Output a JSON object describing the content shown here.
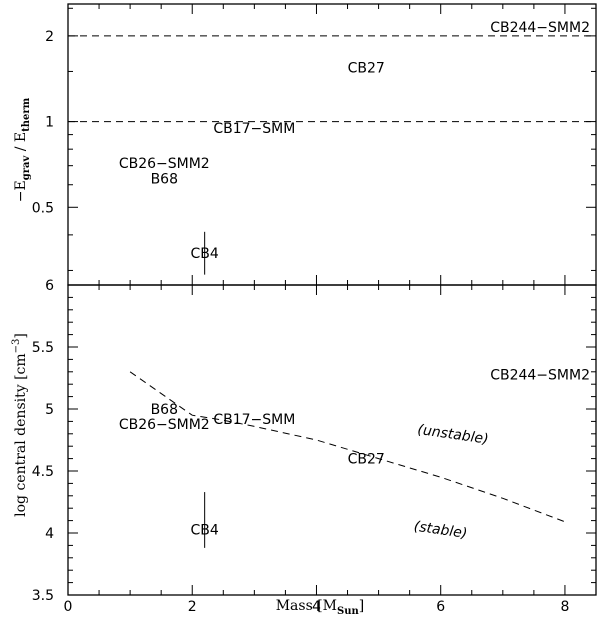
{
  "chart_data": [
    {
      "type": "scatter",
      "panel": "top",
      "xlim": [
        0,
        8.5
      ],
      "ylim_log10": [
        -0.574,
        0.413
      ],
      "y_scale": "log",
      "ylabel": {
        "prefix": "−E",
        "sub1": "grav",
        "mid": " / E",
        "sub2": "therm"
      },
      "yticks": [
        {
          "value": 0.5,
          "label": "0.5"
        },
        {
          "value": 1,
          "label": "1"
        },
        {
          "value": 2,
          "label": "2"
        }
      ],
      "hlines": [
        {
          "y": 2,
          "style": "dashed"
        },
        {
          "y": 1,
          "style": "dashed"
        }
      ],
      "points": [
        {
          "name": "CB244−SMM2",
          "x": 7.6,
          "y": 2.15
        },
        {
          "name": "CB27",
          "x": 4.8,
          "y": 1.55
        },
        {
          "name": "CB17−SMM",
          "x": 3.0,
          "y": 0.95
        },
        {
          "name": "CB26−SMM2",
          "x": 1.55,
          "y": 0.715
        },
        {
          "name": "B68",
          "x": 1.55,
          "y": 0.63
        },
        {
          "name": "CB4",
          "x": 2.2,
          "y": 0.345,
          "yerr": [
            0.29,
            0.41
          ]
        }
      ]
    },
    {
      "type": "scatter",
      "panel": "bottom",
      "xlim": [
        0,
        8.5
      ],
      "ylim": [
        3.5,
        6
      ],
      "xlabel": {
        "prefix": "Mass [M",
        "sub": "Sun",
        "suffix": "]"
      },
      "ylabel": {
        "prefix": "log central density [cm",
        "sup": "−3",
        "suffix": "]"
      },
      "xticks": [
        0,
        2,
        4,
        6,
        8
      ],
      "yticks": [
        3.5,
        4,
        4.5,
        5,
        5.5,
        6
      ],
      "curve": {
        "style": "dashed",
        "x": [
          1.0,
          2.0,
          2.5,
          3.0,
          4.0,
          5.0,
          6.0,
          7.0,
          8.0
        ],
        "y": [
          5.3,
          4.95,
          4.91,
          4.86,
          4.75,
          4.6,
          4.45,
          4.28,
          4.09
        ]
      },
      "points": [
        {
          "name": "CB244−SMM2",
          "x": 7.6,
          "y": 5.28
        },
        {
          "name": "B68",
          "x": 1.55,
          "y": 5.0
        },
        {
          "name": "CB17−SMM",
          "x": 3.0,
          "y": 4.92
        },
        {
          "name": "CB26−SMM2",
          "x": 1.55,
          "y": 4.88
        },
        {
          "name": "CB27",
          "x": 4.8,
          "y": 4.6
        },
        {
          "name": "CB4",
          "x": 2.2,
          "y": 4.03,
          "yerr": [
            3.88,
            4.33
          ]
        }
      ],
      "annotations": [
        {
          "text": "(unstable)",
          "x": 6.2,
          "y": 4.8
        },
        {
          "text": "(stable)",
          "x": 6.0,
          "y": 4.03
        }
      ]
    }
  ]
}
